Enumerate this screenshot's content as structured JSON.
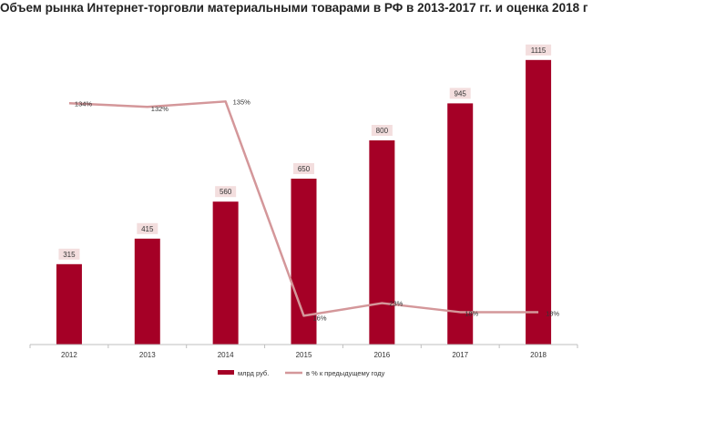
{
  "chart_data": {
    "type": "bar",
    "title": "Объем рынка Интернет-торговли материальными товарами в РФ в 2013-2017 гг. и оценка 2018 г",
    "categories": [
      "2012",
      "2013",
      "2014",
      "2015",
      "2016",
      "2017",
      "2018"
    ],
    "series": [
      {
        "name": "млрд руб.",
        "type": "bar",
        "values": [
          315,
          415,
          560,
          650,
          800,
          945,
          1115
        ],
        "labels": [
          "315",
          "415",
          "560",
          "650",
          "800",
          "945",
          "1115"
        ],
        "color": "#A50026"
      },
      {
        "name": "в % к предыдущему году",
        "type": "line",
        "axis": "secondary",
        "values": [
          134,
          132,
          135,
          16,
          23,
          18,
          18
        ],
        "labels": [
          "134%",
          "132%",
          "135%",
          "16%",
          "23%",
          "18%",
          "18%"
        ],
        "color": "#D4979A"
      }
    ],
    "ylim": [
      0,
      1150
    ],
    "y2lim": [
      0,
      163
    ],
    "grid": false,
    "legend_position": "bottom",
    "colors": {
      "bar": "#A50026",
      "line": "#D4979A",
      "label_bg": "#F3DEDE",
      "axis": "#BFBFBF"
    }
  }
}
